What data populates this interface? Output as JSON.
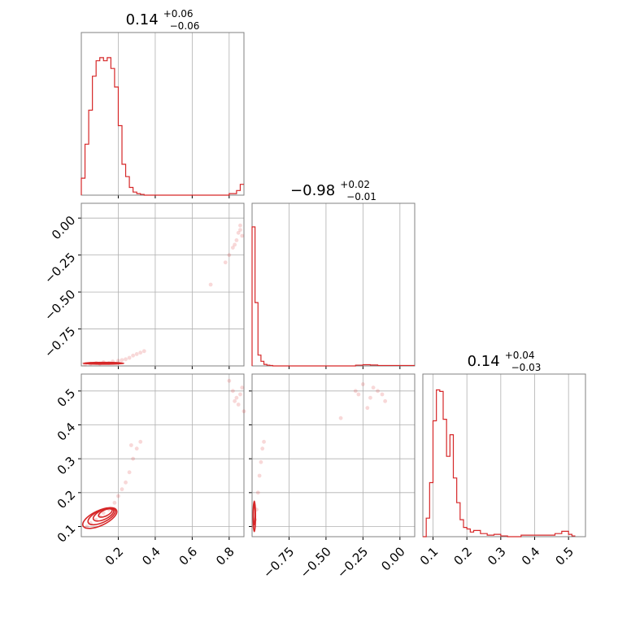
{
  "chart_data": {
    "type": "scatter",
    "subtype": "corner-plot",
    "color": "#d62728",
    "grid": true,
    "parameters": [
      {
        "range": [
          0.0,
          0.88
        ],
        "ticks": [
          0.2,
          0.4,
          0.6,
          0.8
        ],
        "tick_labels": [
          "0.2",
          "0.4",
          "0.6",
          "0.8"
        ],
        "title": "0.14",
        "title_upper": "+0.06",
        "title_lower": "−0.06"
      },
      {
        "range": [
          -1.0,
          0.1
        ],
        "ticks": [
          -0.75,
          -0.5,
          -0.25,
          0.0
        ],
        "tick_labels": [
          "−0.75",
          "−0.50",
          "−0.25",
          "0.00"
        ],
        "title": "−0.98",
        "title_upper": "+0.02",
        "title_lower": "−0.01"
      },
      {
        "range": [
          0.07,
          0.55
        ],
        "ticks": [
          0.1,
          0.2,
          0.3,
          0.4,
          0.5
        ],
        "tick_labels": [
          "0.1",
          "0.2",
          "0.3",
          "0.4",
          "0.5"
        ],
        "title": "0.14",
        "title_upper": "+0.04",
        "title_lower": "−0.03"
      }
    ],
    "histograms": [
      {
        "param": 0,
        "bin_edges": [
          0.0,
          0.02,
          0.04,
          0.06,
          0.08,
          0.1,
          0.12,
          0.14,
          0.16,
          0.18,
          0.2,
          0.22,
          0.24,
          0.26,
          0.28,
          0.3,
          0.32,
          0.34,
          0.8,
          0.82,
          0.84,
          0.86,
          0.88
        ],
        "counts": [
          0.11,
          0.33,
          0.55,
          0.77,
          0.87,
          0.89,
          0.87,
          0.89,
          0.82,
          0.7,
          0.45,
          0.2,
          0.12,
          0.05,
          0.02,
          0.01,
          0.005,
          0.0,
          0.01,
          0.01,
          0.03,
          0.07
        ]
      },
      {
        "param": 1,
        "bin_edges": [
          -1.0,
          -0.98,
          -0.96,
          -0.94,
          -0.92,
          -0.9,
          -0.88,
          -0.86,
          -0.3,
          -0.25,
          -0.2,
          -0.15,
          0.1
        ],
        "counts": [
          0.9,
          0.41,
          0.07,
          0.03,
          0.01,
          0.005,
          0.003,
          0.0,
          0.005,
          0.008,
          0.006,
          0.003
        ]
      },
      {
        "param": 2,
        "bin_edges": [
          0.07,
          0.08,
          0.09,
          0.1,
          0.11,
          0.12,
          0.13,
          0.14,
          0.15,
          0.16,
          0.17,
          0.18,
          0.19,
          0.2,
          0.21,
          0.22,
          0.24,
          0.26,
          0.28,
          0.3,
          0.32,
          0.34,
          0.36,
          0.46,
          0.48,
          0.5,
          0.51,
          0.52
        ],
        "counts": [
          0.0,
          0.12,
          0.35,
          0.75,
          0.95,
          0.94,
          0.76,
          0.52,
          0.66,
          0.38,
          0.22,
          0.11,
          0.06,
          0.05,
          0.03,
          0.04,
          0.02,
          0.01,
          0.015,
          0.005,
          0.0,
          0.0,
          0.01,
          0.02,
          0.035,
          0.015,
          0.005
        ]
      }
    ],
    "scatter": [
      {
        "x_param": 0,
        "y_param": 1,
        "points": [
          [
            0.02,
            -0.99
          ],
          [
            0.05,
            -0.985
          ],
          [
            0.08,
            -0.98
          ],
          [
            0.1,
            -0.985
          ],
          [
            0.12,
            -0.975
          ],
          [
            0.15,
            -0.98
          ],
          [
            0.17,
            -0.97
          ],
          [
            0.2,
            -0.965
          ],
          [
            0.22,
            -0.96
          ],
          [
            0.24,
            -0.955
          ],
          [
            0.26,
            -0.945
          ],
          [
            0.28,
            -0.93
          ],
          [
            0.3,
            -0.92
          ],
          [
            0.32,
            -0.91
          ],
          [
            0.34,
            -0.9
          ],
          [
            0.7,
            -0.45
          ],
          [
            0.78,
            -0.3
          ],
          [
            0.8,
            -0.25
          ],
          [
            0.82,
            -0.2
          ],
          [
            0.84,
            -0.15
          ],
          [
            0.85,
            -0.1
          ],
          [
            0.86,
            -0.08
          ],
          [
            0.87,
            -0.12
          ],
          [
            0.83,
            -0.18
          ],
          [
            0.86,
            -0.05
          ]
        ]
      },
      {
        "x_param": 0,
        "y_param": 2,
        "points": [
          [
            0.03,
            0.1
          ],
          [
            0.05,
            0.11
          ],
          [
            0.08,
            0.12
          ],
          [
            0.1,
            0.13
          ],
          [
            0.12,
            0.14
          ],
          [
            0.15,
            0.15
          ],
          [
            0.18,
            0.17
          ],
          [
            0.2,
            0.19
          ],
          [
            0.22,
            0.21
          ],
          [
            0.24,
            0.23
          ],
          [
            0.26,
            0.26
          ],
          [
            0.28,
            0.3
          ],
          [
            0.3,
            0.33
          ],
          [
            0.32,
            0.35
          ],
          [
            0.27,
            0.34
          ],
          [
            0.8,
            0.53
          ],
          [
            0.82,
            0.5
          ],
          [
            0.84,
            0.48
          ],
          [
            0.85,
            0.46
          ],
          [
            0.86,
            0.49
          ],
          [
            0.87,
            0.51
          ],
          [
            0.83,
            0.47
          ],
          [
            0.88,
            0.44
          ]
        ]
      },
      {
        "x_param": 1,
        "y_param": 2,
        "points": [
          [
            -0.99,
            0.1
          ],
          [
            -0.98,
            0.12
          ],
          [
            -0.97,
            0.15
          ],
          [
            -0.96,
            0.2
          ],
          [
            -0.95,
            0.25
          ],
          [
            -0.94,
            0.29
          ],
          [
            -0.93,
            0.33
          ],
          [
            -0.92,
            0.35
          ],
          [
            -0.4,
            0.42
          ],
          [
            -0.3,
            0.5
          ],
          [
            -0.25,
            0.52
          ],
          [
            -0.2,
            0.48
          ],
          [
            -0.15,
            0.5
          ],
          [
            -0.1,
            0.47
          ],
          [
            -0.22,
            0.45
          ],
          [
            -0.18,
            0.51
          ],
          [
            -0.28,
            0.49
          ],
          [
            -0.12,
            0.49
          ]
        ]
      }
    ],
    "contours": [
      {
        "x_param": 0,
        "y_param": 2,
        "levels": [
          {
            "center": [
              0.1,
              0.125
            ],
            "rx": 0.1,
            "ry": 0.022
          },
          {
            "center": [
              0.11,
              0.13
            ],
            "rx": 0.08,
            "ry": 0.018
          },
          {
            "center": [
              0.12,
              0.135
            ],
            "rx": 0.06,
            "ry": 0.014
          },
          {
            "center": [
              0.13,
              0.14
            ],
            "rx": 0.04,
            "ry": 0.009
          }
        ]
      },
      {
        "x_param": 0,
        "y_param": 1,
        "levels": [
          {
            "center": [
              0.12,
              -0.982
            ],
            "rx": 0.11,
            "ry": 0.006
          },
          {
            "center": [
              0.12,
              -0.982
            ],
            "rx": 0.08,
            "ry": 0.004
          }
        ]
      },
      {
        "x_param": 1,
        "y_param": 2,
        "levels": [
          {
            "center": [
              -0.985,
              0.13
            ],
            "rx": 0.008,
            "ry": 0.045
          },
          {
            "center": [
              -0.985,
              0.135
            ],
            "rx": 0.006,
            "ry": 0.03
          }
        ]
      }
    ]
  }
}
